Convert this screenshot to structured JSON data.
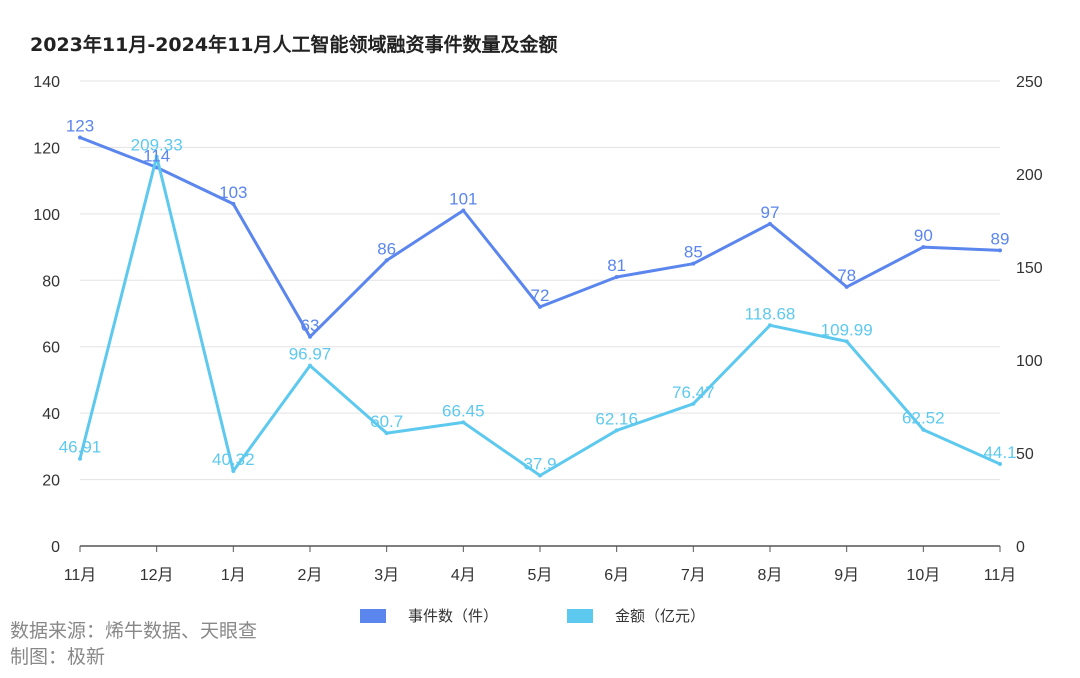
{
  "title": "2023年11月-2024年11月人工智能领域融资事件数量及金额",
  "source_line1": "数据来源：烯牛数据、天眼查",
  "source_line2": "制图：极新",
  "chart_data": {
    "type": "line",
    "title": "2023年11月-2024年11月人工智能领域融资事件数量及金额",
    "categories": [
      "11月",
      "12月",
      "1月",
      "2月",
      "3月",
      "4月",
      "5月",
      "6月",
      "7月",
      "8月",
      "9月",
      "10月",
      "11月"
    ],
    "y_left": {
      "ylim": [
        0,
        140
      ],
      "ticks": [
        0,
        20,
        40,
        60,
        80,
        100,
        120,
        140
      ]
    },
    "y_right": {
      "ylim": [
        0,
        250
      ],
      "ticks": [
        0,
        50,
        100,
        150,
        200,
        250
      ]
    },
    "grid": true,
    "legend_position": "bottom",
    "series": [
      {
        "name": "事件数（件）",
        "axis": "left",
        "color": "#5b86ee",
        "values": [
          123,
          114,
          103,
          63,
          86,
          101,
          72,
          81,
          85,
          97,
          78,
          90,
          89
        ],
        "labels": [
          "123",
          "114",
          "103",
          "63",
          "86",
          "101",
          "72",
          "81",
          "85",
          "97",
          "78",
          "90",
          "89"
        ]
      },
      {
        "name": "金额（亿元）",
        "axis": "right",
        "color": "#5ec9ee",
        "values": [
          46.91,
          209.33,
          40.32,
          96.97,
          60.7,
          66.45,
          37.9,
          62.16,
          76.47,
          118.68,
          109.99,
          62.52,
          44.1
        ],
        "labels": [
          "46.91",
          "209.33",
          "40.32",
          "96.97",
          "60.7",
          "66.45",
          "37.9",
          "62.16",
          "76.47",
          "118.68",
          "109.99",
          "62.52",
          "44.1"
        ]
      }
    ]
  }
}
